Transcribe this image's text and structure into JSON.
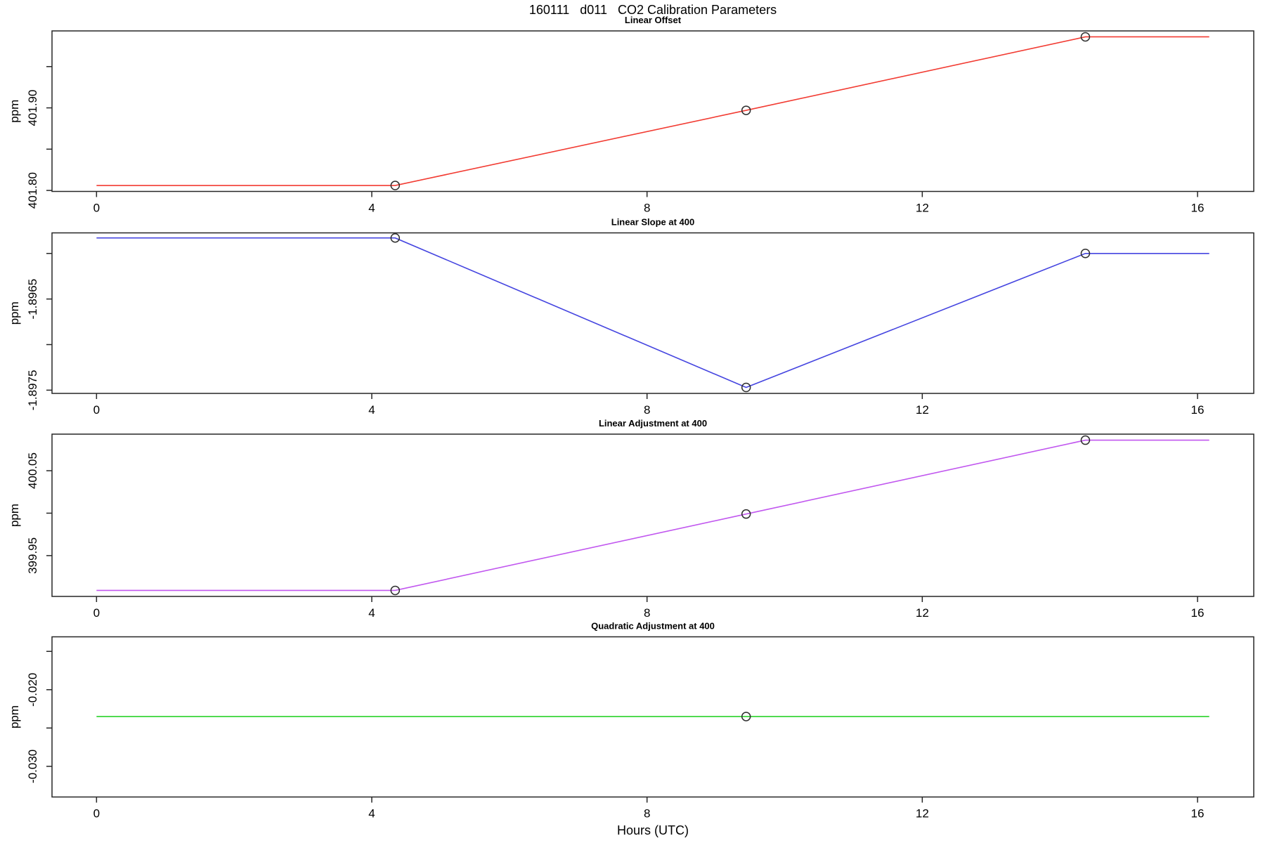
{
  "title": "160111   d011   CO2 Calibration Parameters",
  "xlabel": "Hours (UTC)",
  "background_color": "#ffffff",
  "axis_color": "#262626",
  "marker_color": "#2e2e2e",
  "chart_data": [
    {
      "type": "line",
      "title": "Linear Offset",
      "ylabel": "ppm",
      "color": "#f23b32",
      "x": [
        0,
        4.34,
        9.44,
        14.37,
        16.17
      ],
      "y": [
        401.806,
        401.806,
        401.897,
        401.986,
        401.986
      ],
      "marker_x": [
        4.34,
        9.44,
        14.37
      ],
      "marker_y": [
        401.806,
        401.897,
        401.986
      ],
      "xlim": [
        -0.647,
        16.817
      ],
      "ylim": [
        401.7988,
        401.9932
      ],
      "xticks": [
        0,
        4,
        8,
        12,
        16
      ],
      "xtick_labels": [
        "0",
        "4",
        "8",
        "12",
        "16"
      ],
      "yticks": [
        401.8,
        401.85,
        401.9,
        401.95
      ],
      "ytick_labels": [
        "401.80",
        "",
        "401.90",
        ""
      ]
    },
    {
      "type": "line",
      "title": "Linear Slope at 400",
      "ylabel": "ppm",
      "color": "#4545e0",
      "x": [
        0,
        4.34,
        9.44,
        14.37,
        16.17
      ],
      "y": [
        -1.89583,
        -1.89583,
        -1.89747,
        -1.896,
        -1.896
      ],
      "marker_x": [
        4.34,
        9.44,
        14.37
      ],
      "marker_y": [
        -1.89583,
        -1.89747,
        -1.896
      ],
      "xlim": [
        -0.647,
        16.817
      ],
      "ylim": [
        -1.8975356,
        -1.8957744
      ],
      "xticks": [
        0,
        4,
        8,
        12,
        16
      ],
      "xtick_labels": [
        "0",
        "4",
        "8",
        "12",
        "16"
      ],
      "yticks": [
        -1.896,
        -1.8965,
        -1.897,
        -1.8975
      ],
      "ytick_labels": [
        "",
        "-1.8965",
        "",
        "-1.8975"
      ]
    },
    {
      "type": "line",
      "title": "Linear Adjustment at 400",
      "ylabel": "ppm",
      "color": "#c157ef",
      "x": [
        0,
        4.34,
        9.44,
        14.37,
        16.17
      ],
      "y": [
        399.909,
        399.909,
        399.999,
        400.086,
        400.086
      ],
      "marker_x": [
        4.34,
        9.44,
        14.37
      ],
      "marker_y": [
        399.909,
        399.999,
        400.086
      ],
      "xlim": [
        -0.647,
        16.817
      ],
      "ylim": [
        399.90192,
        400.09308
      ],
      "xticks": [
        0,
        4,
        8,
        12,
        16
      ],
      "xtick_labels": [
        "0",
        "4",
        "8",
        "12",
        "16"
      ],
      "yticks": [
        399.95,
        400.0,
        400.05
      ],
      "ytick_labels": [
        "399.95",
        "",
        "400.05"
      ]
    },
    {
      "type": "line",
      "title": "Quadratic Adjustment at 400",
      "ylabel": "ppm",
      "color": "#2ad22a",
      "x": [
        0,
        16.17
      ],
      "y": [
        -0.0235,
        -0.0235
      ],
      "marker_x": [
        9.44
      ],
      "marker_y": [
        -0.0235
      ],
      "xlim": [
        -0.647,
        16.817
      ],
      "ylim": [
        -0.034,
        -0.0131
      ],
      "xticks": [
        0,
        4,
        8,
        12,
        16
      ],
      "xtick_labels": [
        "0",
        "4",
        "8",
        "12",
        "16"
      ],
      "yticks": [
        -0.015,
        -0.02,
        -0.025,
        -0.03
      ],
      "ytick_labels": [
        "",
        "-0.020",
        "",
        "-0.030"
      ]
    }
  ]
}
